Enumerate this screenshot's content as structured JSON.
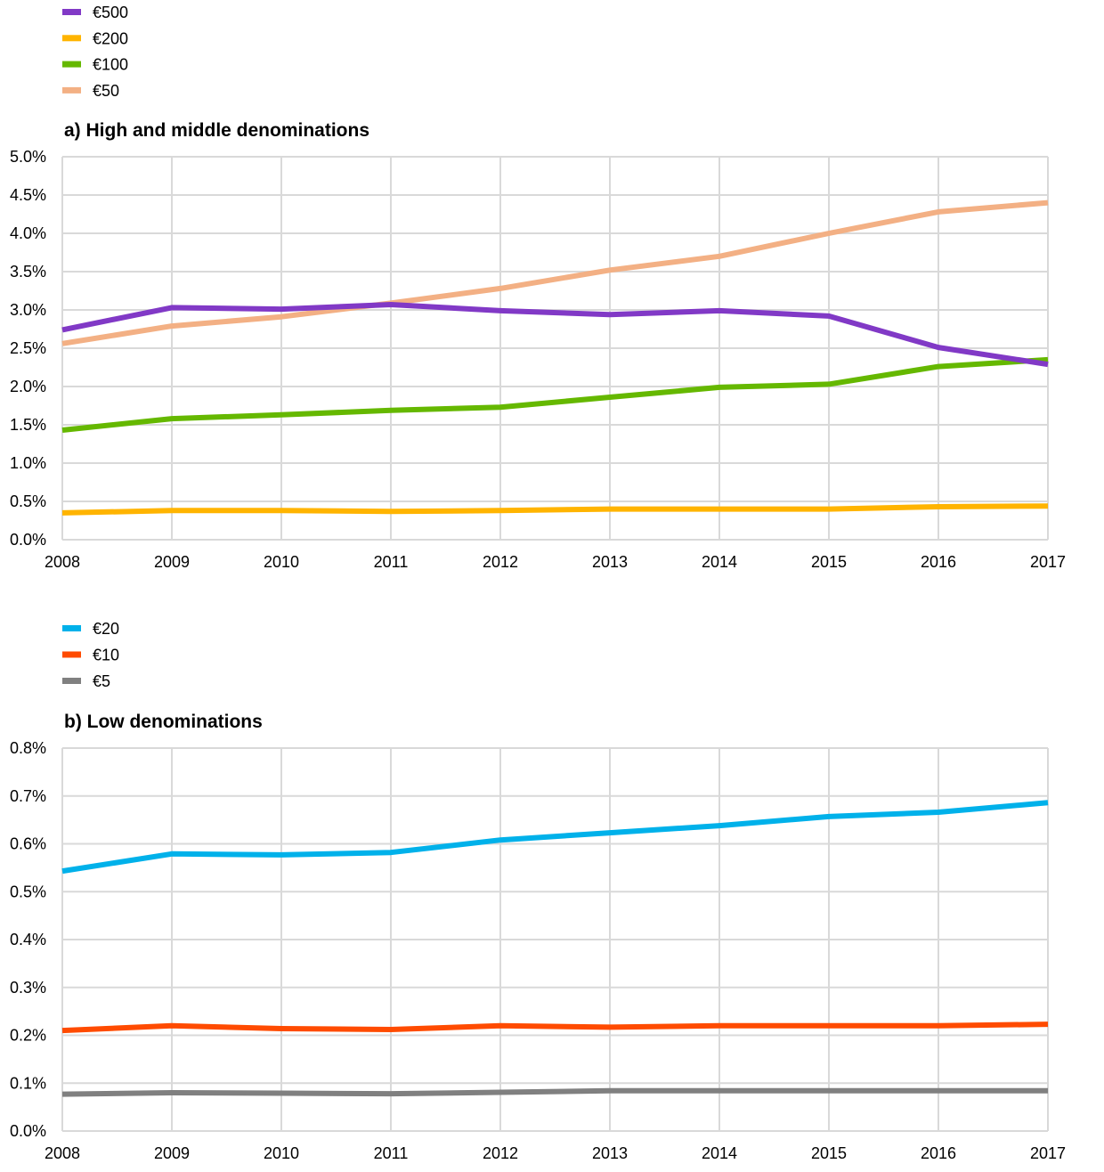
{
  "chart_data": [
    {
      "type": "line",
      "title": "a) High and middle denominations",
      "xlabel": "",
      "ylabel": "",
      "x": [
        "2008",
        "2009",
        "2010",
        "2011",
        "2012",
        "2013",
        "2014",
        "2015",
        "2016",
        "2017"
      ],
      "ylim": [
        0,
        5.0
      ],
      "yticks": [
        "0.0%",
        "0.5%",
        "1.0%",
        "1.5%",
        "2.0%",
        "2.5%",
        "3.0%",
        "3.5%",
        "4.0%",
        "4.5%",
        "5.0%"
      ],
      "ytick_values": [
        0,
        0.5,
        1.0,
        1.5,
        2.0,
        2.5,
        3.0,
        3.5,
        4.0,
        4.5,
        5.0
      ],
      "grid": true,
      "legend_position": "top-left",
      "series": [
        {
          "name": "€500",
          "color": "#8139c6",
          "values": [
            2.74,
            3.03,
            3.01,
            3.07,
            2.99,
            2.94,
            2.99,
            2.92,
            2.51,
            2.29
          ]
        },
        {
          "name": "€200",
          "color": "#ffb400",
          "values": [
            0.35,
            0.38,
            0.38,
            0.37,
            0.38,
            0.4,
            0.4,
            0.4,
            0.43,
            0.44
          ]
        },
        {
          "name": "€100",
          "color": "#65b800",
          "values": [
            1.43,
            1.58,
            1.63,
            1.69,
            1.73,
            1.86,
            1.99,
            2.03,
            2.26,
            2.35
          ]
        },
        {
          "name": "€50",
          "color": "#f3b084",
          "values": [
            2.56,
            2.79,
            2.91,
            3.09,
            3.28,
            3.52,
            3.7,
            4.0,
            4.28,
            4.4
          ]
        }
      ]
    },
    {
      "type": "line",
      "title": "b) Low denominations",
      "xlabel": "",
      "ylabel": "",
      "x": [
        "2008",
        "2009",
        "2010",
        "2011",
        "2012",
        "2013",
        "2014",
        "2015",
        "2016",
        "2017"
      ],
      "ylim": [
        0,
        0.8
      ],
      "yticks": [
        "0.0%",
        "0.1%",
        "0.2%",
        "0.3%",
        "0.4%",
        "0.5%",
        "0.6%",
        "0.7%",
        "0.8%"
      ],
      "ytick_values": [
        0,
        0.1,
        0.2,
        0.3,
        0.4,
        0.5,
        0.6,
        0.7,
        0.8
      ],
      "grid": true,
      "legend_position": "top-left",
      "series": [
        {
          "name": "€20",
          "color": "#00b1ea",
          "values": [
            0.543,
            0.579,
            0.577,
            0.582,
            0.608,
            0.623,
            0.638,
            0.657,
            0.666,
            0.686
          ]
        },
        {
          "name": "€10",
          "color": "#ff4b00",
          "values": [
            0.21,
            0.22,
            0.214,
            0.212,
            0.22,
            0.217,
            0.22,
            0.22,
            0.22,
            0.223
          ]
        },
        {
          "name": "€5",
          "color": "#808080",
          "values": [
            0.077,
            0.08,
            0.079,
            0.078,
            0.081,
            0.084,
            0.084,
            0.084,
            0.084,
            0.084
          ]
        }
      ]
    }
  ]
}
